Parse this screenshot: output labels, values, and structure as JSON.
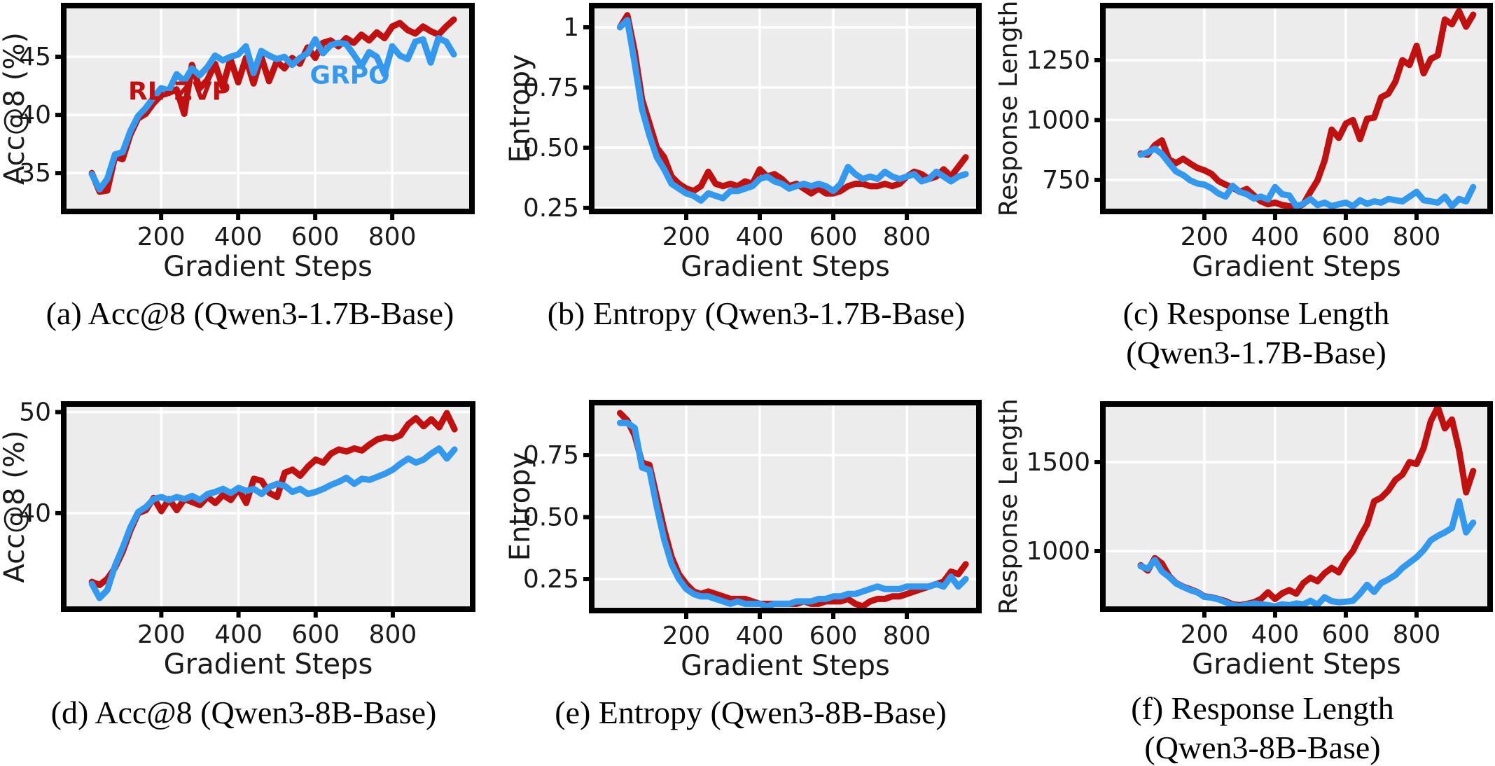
{
  "colors": {
    "rl_zvp": "#C01010",
    "grpo": "#3399EE",
    "plot_bg": "#ECECEC",
    "grid": "#FFFFFF",
    "axis": "#000000",
    "tick_text": "#1A1A1A"
  },
  "legend": {
    "series1": "RL-ZVP",
    "series2": "GRPO"
  },
  "captions": [
    {
      "id": "a",
      "text": "(a) Acc@8 (Qwen3-1.7B-Base)"
    },
    {
      "id": "b",
      "text": "(b) Entropy (Qwen3-1.7B-Base)"
    },
    {
      "id": "c",
      "text": "(c) Response Length\n(Qwen3-1.7B-Base)"
    },
    {
      "id": "d",
      "text": "(d) Acc@8 (Qwen3-8B-Base)"
    },
    {
      "id": "e",
      "text": "(e) Entropy (Qwen3-8B-Base)"
    },
    {
      "id": "f",
      "text": "(f) Response Length\n(Qwen3-8B-Base)"
    }
  ],
  "steps": [
    20,
    40,
    60,
    80,
    100,
    120,
    140,
    160,
    180,
    200,
    220,
    240,
    260,
    280,
    300,
    320,
    340,
    360,
    380,
    400,
    420,
    440,
    460,
    480,
    500,
    520,
    540,
    560,
    580,
    600,
    620,
    640,
    660,
    680,
    700,
    720,
    740,
    760,
    780,
    800,
    820,
    840,
    860,
    880,
    900,
    920,
    940,
    960
  ],
  "chart_data": [
    {
      "id": "a",
      "type": "line",
      "title": "Acc@8 (Qwen3-1.7B-Base)",
      "xlabel": "Gradient Steps",
      "ylabel": "Acc@8 (%)",
      "xticks": [
        200,
        400,
        600,
        800
      ],
      "yticks": [
        35,
        40,
        45
      ],
      "xlim": [
        -53,
        1007
      ],
      "ylim": [
        31.7,
        49.4
      ],
      "grid": true,
      "legend_position": "inline-annotations",
      "annotations": [
        {
          "text": "RL-ZVP",
          "x": 247,
          "y": 41.3,
          "color": "rl_zvp"
        },
        {
          "text": "GRPO",
          "x": 690,
          "y": 42.7,
          "color": "grpo"
        }
      ],
      "series": [
        {
          "name": "RL-ZVP",
          "color": "rl_zvp",
          "values": [
            35.0,
            33.4,
            33.5,
            36.4,
            36.2,
            38.3,
            39.7,
            40.1,
            41.0,
            41.7,
            41.9,
            42.2,
            40.1,
            44.3,
            42.3,
            43.0,
            44.4,
            42.4,
            44.8,
            42.8,
            44.9,
            42.7,
            45.0,
            42.9,
            44.6,
            44.0,
            44.9,
            44.4,
            45.8,
            44.9,
            46.2,
            46.4,
            45.9,
            46.6,
            46.2,
            46.9,
            46.4,
            47.1,
            46.6,
            47.6,
            47.9,
            47.3,
            47.0,
            47.6,
            47.2,
            46.9,
            47.6,
            48.2
          ]
        },
        {
          "name": "GRPO",
          "color": "grpo",
          "values": [
            34.9,
            33.6,
            34.5,
            36.6,
            36.8,
            38.6,
            39.9,
            40.6,
            41.5,
            42.3,
            42.1,
            43.5,
            42.9,
            44.0,
            43.4,
            44.1,
            45.1,
            44.7,
            45.0,
            45.2,
            45.9,
            43.6,
            45.5,
            45.1,
            44.8,
            45.0,
            44.3,
            44.9,
            45.3,
            46.5,
            45.3,
            46.0,
            46.2,
            46.1,
            45.2,
            44.2,
            45.4,
            45.0,
            43.5,
            45.9,
            45.1,
            44.8,
            46.3,
            46.5,
            44.5,
            46.6,
            46.3,
            45.2
          ]
        }
      ]
    },
    {
      "id": "b",
      "type": "line",
      "title": "Entropy (Qwen3-1.7B-Base)",
      "xlabel": "Gradient Steps",
      "ylabel": "Entropy",
      "xticks": [
        200,
        400,
        600,
        800
      ],
      "yticks": [
        0.25,
        0.5,
        0.75,
        1.0
      ],
      "xlim": [
        -57,
        996
      ],
      "ylim": [
        0.235,
        1.09
      ],
      "grid": true,
      "annotations": [],
      "series": [
        {
          "name": "RL-ZVP",
          "color": "rl_zvp",
          "values": [
            1.0,
            1.05,
            0.9,
            0.7,
            0.6,
            0.5,
            0.46,
            0.38,
            0.35,
            0.33,
            0.32,
            0.34,
            0.4,
            0.35,
            0.34,
            0.35,
            0.34,
            0.36,
            0.35,
            0.41,
            0.38,
            0.39,
            0.37,
            0.34,
            0.35,
            0.33,
            0.31,
            0.33,
            0.31,
            0.31,
            0.32,
            0.34,
            0.35,
            0.35,
            0.34,
            0.34,
            0.35,
            0.34,
            0.35,
            0.38,
            0.4,
            0.39,
            0.37,
            0.38,
            0.41,
            0.38,
            0.42,
            0.46
          ]
        },
        {
          "name": "GRPO",
          "color": "grpo",
          "values": [
            1.0,
            1.03,
            0.85,
            0.66,
            0.55,
            0.46,
            0.41,
            0.35,
            0.33,
            0.31,
            0.3,
            0.28,
            0.31,
            0.3,
            0.29,
            0.32,
            0.32,
            0.33,
            0.34,
            0.37,
            0.38,
            0.36,
            0.35,
            0.33,
            0.34,
            0.35,
            0.34,
            0.35,
            0.34,
            0.32,
            0.35,
            0.42,
            0.39,
            0.37,
            0.38,
            0.37,
            0.4,
            0.38,
            0.37,
            0.38,
            0.39,
            0.36,
            0.37,
            0.4,
            0.38,
            0.36,
            0.38,
            0.39
          ]
        }
      ]
    },
    {
      "id": "c",
      "type": "line",
      "title": "Response Length (Qwen3-1.7B-Base)",
      "xlabel": "Gradient Steps",
      "ylabel": "Response Length",
      "xticks": [
        200,
        400,
        600,
        800
      ],
      "yticks": [
        750,
        1000,
        1250
      ],
      "xlim": [
        -87,
        1008
      ],
      "ylim": [
        618,
        1478
      ],
      "grid": true,
      "annotations": [],
      "series": [
        {
          "name": "RL-ZVP",
          "color": "rl_zvp",
          "values": [
            860,
            855,
            895,
            915,
            835,
            820,
            838,
            818,
            800,
            790,
            775,
            745,
            730,
            718,
            700,
            712,
            685,
            660,
            648,
            655,
            645,
            640,
            635,
            648,
            700,
            748,
            830,
            960,
            925,
            985,
            1000,
            920,
            1005,
            1010,
            1095,
            1110,
            1160,
            1250,
            1230,
            1310,
            1195,
            1255,
            1270,
            1420,
            1400,
            1455,
            1390,
            1440
          ]
        },
        {
          "name": "GRPO",
          "color": "grpo",
          "values": [
            855,
            865,
            880,
            858,
            820,
            785,
            770,
            748,
            735,
            730,
            715,
            693,
            680,
            725,
            700,
            690,
            672,
            680,
            668,
            720,
            690,
            685,
            640,
            650,
            670,
            645,
            655,
            640,
            648,
            655,
            640,
            665,
            650,
            660,
            655,
            670,
            665,
            660,
            680,
            700,
            665,
            660,
            655,
            680,
            640,
            670,
            660,
            720
          ]
        }
      ]
    },
    {
      "id": "d",
      "type": "line",
      "title": "Acc@8 (Qwen3-8B-Base)",
      "xlabel": "Gradient Steps",
      "ylabel": "Acc@8 (%)",
      "xticks": [
        200,
        400,
        600,
        800
      ],
      "yticks": [
        40,
        50
      ],
      "xlim": [
        -53,
        1007
      ],
      "ylim": [
        30.5,
        50.8
      ],
      "grid": true,
      "annotations": [],
      "series": [
        {
          "name": "RL-ZVP",
          "color": "rl_zvp",
          "values": [
            33.2,
            32.9,
            33.5,
            34.6,
            36.2,
            38.3,
            40.0,
            40.3,
            41.5,
            40.2,
            41.4,
            40.3,
            41.4,
            41.1,
            40.8,
            41.6,
            41.0,
            41.8,
            41.3,
            42.4,
            41.0,
            43.4,
            43.2,
            42.0,
            41.6,
            44.0,
            44.3,
            43.7,
            44.6,
            45.3,
            45.0,
            45.9,
            46.3,
            46.1,
            46.4,
            46.2,
            46.8,
            47.3,
            47.5,
            47.4,
            47.7,
            48.8,
            49.4,
            48.6,
            49.3,
            48.5,
            49.9,
            48.3
          ]
        },
        {
          "name": "GRPO",
          "color": "grpo",
          "values": [
            33.0,
            31.6,
            32.4,
            34.8,
            36.6,
            38.6,
            40.1,
            40.6,
            41.4,
            41.6,
            41.3,
            41.6,
            41.4,
            41.7,
            41.3,
            41.9,
            42.1,
            42.4,
            42.0,
            42.5,
            42.2,
            42.4,
            41.9,
            42.6,
            42.9,
            42.7,
            42.1,
            42.4,
            41.9,
            42.1,
            42.4,
            42.8,
            43.1,
            43.5,
            42.9,
            43.4,
            43.3,
            43.6,
            43.9,
            44.3,
            44.9,
            45.4,
            45.0,
            45.3,
            45.9,
            46.4,
            45.4,
            46.3
          ]
        }
      ]
    },
    {
      "id": "e",
      "type": "line",
      "title": "Entropy (Qwen3-8B-Base)",
      "xlabel": "Gradient Steps",
      "ylabel": "Entropy",
      "xticks": [
        200,
        400,
        600,
        800
      ],
      "yticks": [
        0.25,
        0.5,
        0.75
      ],
      "xlim": [
        -57,
        996
      ],
      "ylim": [
        0.123,
        0.962
      ],
      "grid": true,
      "annotations": [],
      "series": [
        {
          "name": "RL-ZVP",
          "color": "rl_zvp",
          "values": [
            0.92,
            0.89,
            0.83,
            0.72,
            0.71,
            0.58,
            0.45,
            0.34,
            0.27,
            0.23,
            0.2,
            0.19,
            0.2,
            0.19,
            0.18,
            0.17,
            0.17,
            0.17,
            0.16,
            0.15,
            0.15,
            0.15,
            0.15,
            0.15,
            0.15,
            0.16,
            0.15,
            0.15,
            0.16,
            0.16,
            0.16,
            0.17,
            0.15,
            0.14,
            0.16,
            0.17,
            0.17,
            0.18,
            0.18,
            0.19,
            0.2,
            0.21,
            0.22,
            0.23,
            0.24,
            0.28,
            0.27,
            0.31
          ]
        },
        {
          "name": "GRPO",
          "color": "grpo",
          "values": [
            0.88,
            0.88,
            0.86,
            0.7,
            0.69,
            0.54,
            0.41,
            0.31,
            0.25,
            0.21,
            0.19,
            0.18,
            0.18,
            0.17,
            0.16,
            0.15,
            0.16,
            0.15,
            0.15,
            0.15,
            0.14,
            0.15,
            0.15,
            0.15,
            0.16,
            0.16,
            0.16,
            0.17,
            0.17,
            0.18,
            0.18,
            0.19,
            0.19,
            0.2,
            0.21,
            0.22,
            0.21,
            0.21,
            0.21,
            0.22,
            0.22,
            0.22,
            0.22,
            0.23,
            0.22,
            0.26,
            0.22,
            0.25
          ]
        }
      ]
    },
    {
      "id": "f",
      "type": "line",
      "title": "Response Length (Qwen3-8B-Base)",
      "xlabel": "Gradient Steps",
      "ylabel": "Response Length",
      "xticks": [
        200,
        400,
        600,
        800
      ],
      "yticks": [
        1000,
        1500
      ],
      "xlim": [
        -87,
        1008
      ],
      "ylim": [
        673,
        1827
      ],
      "grid": true,
      "annotations": [],
      "series": [
        {
          "name": "RL-ZVP",
          "color": "rl_zvp",
          "values": [
            920,
            890,
            960,
            930,
            860,
            820,
            800,
            785,
            770,
            745,
            740,
            730,
            718,
            700,
            695,
            702,
            712,
            730,
            768,
            730,
            762,
            780,
            760,
            820,
            850,
            830,
            875,
            905,
            880,
            950,
            1000,
            1080,
            1150,
            1280,
            1300,
            1340,
            1400,
            1430,
            1500,
            1490,
            1580,
            1730,
            1810,
            1690,
            1740,
            1570,
            1330,
            1450
          ]
        },
        {
          "name": "GRPO",
          "color": "grpo",
          "values": [
            915,
            900,
            950,
            885,
            855,
            818,
            798,
            780,
            768,
            742,
            738,
            728,
            712,
            695,
            690,
            698,
            705,
            700,
            695,
            688,
            700,
            695,
            705,
            700,
            720,
            698,
            740,
            718,
            712,
            715,
            720,
            760,
            810,
            770,
            820,
            840,
            865,
            905,
            935,
            965,
            1005,
            1060,
            1085,
            1105,
            1130,
            1280,
            1105,
            1160
          ]
        }
      ]
    }
  ]
}
